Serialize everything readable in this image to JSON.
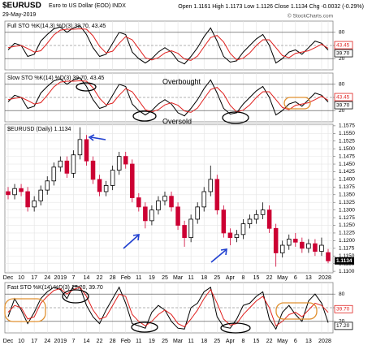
{
  "header": {
    "symbol": "$EURUSD",
    "name": "Euro to US Dollar (EOD) INDX",
    "date": "29-May-2019",
    "quote": "Open 1.1161 High 1.1173 Low 1.1126 Close 1.1134 Chg -0.0032 (-0.29%)",
    "source": "© StockCharts.com"
  },
  "chart_data": [
    {
      "type": "line",
      "title": "Full STO %K(14,3) %D(3) 39.70, 43.45",
      "xlim": [
        0,
        49
      ],
      "ylim": [
        0,
        100
      ],
      "yticks": [
        20,
        50,
        80
      ],
      "series": [
        {
          "color": "#000000",
          "last_label": "39.70",
          "values": [
            40,
            55,
            50,
            25,
            30,
            60,
            75,
            88,
            92,
            80,
            90,
            95,
            75,
            45,
            25,
            30,
            55,
            80,
            75,
            35,
            20,
            10,
            20,
            35,
            45,
            35,
            15,
            8,
            25,
            45,
            70,
            90,
            60,
            25,
            12,
            15,
            35,
            50,
            65,
            75,
            50,
            10,
            20,
            35,
            40,
            30,
            45,
            60,
            55,
            39.7
          ]
        },
        {
          "color": "#e0201e",
          "last_label": "43.45",
          "values": [
            45,
            48,
            50,
            43,
            35,
            38,
            55,
            74,
            85,
            87,
            87,
            88,
            87,
            72,
            48,
            33,
            37,
            55,
            70,
            63,
            43,
            22,
            17,
            22,
            33,
            38,
            32,
            19,
            16,
            26,
            47,
            68,
            73,
            58,
            32,
            17,
            21,
            33,
            50,
            63,
            63,
            45,
            27,
            22,
            32,
            35,
            38,
            45,
            53,
            43.45
          ]
        }
      ]
    },
    {
      "type": "line",
      "title": "Slow STO %K(14) %D(3) 39.70, 43.45",
      "xlim": [
        0,
        49
      ],
      "ylim": [
        0,
        100
      ],
      "yticks": [
        20,
        50,
        80
      ],
      "annotations": [
        "Overbought",
        "Oversold"
      ],
      "series": [
        {
          "color": "#000000",
          "last_label": "39.70",
          "values": [
            40,
            55,
            50,
            25,
            30,
            60,
            75,
            88,
            92,
            80,
            90,
            95,
            75,
            45,
            25,
            30,
            55,
            80,
            75,
            35,
            20,
            10,
            20,
            35,
            45,
            35,
            15,
            8,
            25,
            45,
            70,
            90,
            60,
            25,
            12,
            15,
            35,
            50,
            65,
            75,
            50,
            10,
            20,
            35,
            40,
            30,
            45,
            60,
            55,
            39.7
          ]
        },
        {
          "color": "#e0201e",
          "last_label": "43.45",
          "values": [
            45,
            48,
            50,
            43,
            35,
            38,
            55,
            74,
            85,
            87,
            87,
            88,
            87,
            72,
            48,
            33,
            37,
            55,
            70,
            63,
            43,
            22,
            17,
            22,
            33,
            38,
            32,
            19,
            16,
            26,
            47,
            68,
            73,
            58,
            32,
            17,
            21,
            33,
            50,
            63,
            63,
            45,
            27,
            22,
            32,
            35,
            38,
            45,
            53,
            43.45
          ]
        }
      ]
    },
    {
      "type": "candlestick",
      "title": "$EURUSD (Daily) 1.1134",
      "last_label": "1.1134",
      "up_color": "#000000",
      "down_color": "#cc0033",
      "xlim": [
        0,
        49
      ],
      "ylim": [
        1.1095,
        1.158
      ],
      "yticks": [
        {
          "value": 1.11,
          "label": "1.1100"
        },
        1.1125,
        {
          "value": 1.115,
          "label": "1.1150"
        },
        1.1175,
        {
          "value": 1.12,
          "label": "1.1200"
        },
        1.1225,
        {
          "value": 1.125,
          "label": "1.1250"
        },
        1.1275,
        {
          "value": 1.13,
          "label": "1.1300"
        },
        1.1325,
        {
          "value": 1.135,
          "label": "1.1350"
        },
        1.1375,
        {
          "value": 1.14,
          "label": "1.1400"
        },
        1.1425,
        {
          "value": 1.145,
          "label": "1.1450"
        },
        1.1475,
        {
          "value": 1.15,
          "label": "1.1500"
        },
        1.1525,
        {
          "value": 1.155,
          "label": "1.1550"
        },
        1.1575
      ],
      "xticks": [
        {
          "value": 0,
          "label": "Dec"
        },
        {
          "value": 2,
          "label": "10"
        },
        {
          "value": 4,
          "label": "17"
        },
        {
          "value": 6,
          "label": "24"
        },
        {
          "value": 8,
          "label": "2019"
        },
        {
          "value": 10,
          "label": "7"
        },
        {
          "value": 12,
          "label": "14"
        },
        {
          "value": 14,
          "label": "22"
        },
        {
          "value": 16,
          "label": "28"
        },
        {
          "value": 18,
          "label": "Feb"
        },
        {
          "value": 20,
          "label": "11"
        },
        {
          "value": 22,
          "label": "19"
        },
        {
          "value": 24,
          "label": "25"
        },
        {
          "value": 26,
          "label": "Mar"
        },
        {
          "value": 28,
          "label": "11"
        },
        {
          "value": 30,
          "label": "18"
        },
        {
          "value": 32,
          "label": "25"
        },
        {
          "value": 34,
          "label": "Apr"
        },
        {
          "value": 36,
          "label": "8"
        },
        {
          "value": 38,
          "label": "15"
        },
        {
          "value": 40,
          "label": "22"
        },
        {
          "value": 42,
          "label": "May"
        },
        {
          "value": 44,
          "label": "6"
        },
        {
          "value": 46,
          "label": "13"
        },
        {
          "value": 48,
          "label": "20"
        },
        {
          "value": 49,
          "label": "28"
        }
      ],
      "open": [
        1.136,
        1.135,
        1.137,
        1.136,
        1.131,
        1.133,
        1.1365,
        1.1395,
        1.144,
        1.146,
        1.142,
        1.148,
        1.153,
        1.146,
        1.14,
        1.136,
        1.138,
        1.143,
        1.1475,
        1.145,
        1.134,
        1.131,
        1.1265,
        1.13,
        1.133,
        1.1345,
        1.131,
        1.125,
        1.121,
        1.127,
        1.131,
        1.136,
        1.14,
        1.13,
        1.1225,
        1.121,
        1.122,
        1.1255,
        1.127,
        1.1285,
        1.13,
        1.124,
        1.116,
        1.1185,
        1.1205,
        1.1195,
        1.1175,
        1.119,
        1.1165,
        1.1161
      ],
      "high": [
        1.1375,
        1.1385,
        1.1385,
        1.1375,
        1.1345,
        1.138,
        1.141,
        1.1455,
        1.1475,
        1.1475,
        1.1495,
        1.157,
        1.1545,
        1.1475,
        1.1415,
        1.1395,
        1.1445,
        1.149,
        1.149,
        1.1465,
        1.1355,
        1.1325,
        1.1315,
        1.1345,
        1.136,
        1.136,
        1.1325,
        1.1265,
        1.1285,
        1.1325,
        1.1375,
        1.1445,
        1.1415,
        1.1315,
        1.124,
        1.1235,
        1.127,
        1.1285,
        1.13,
        1.1325,
        1.1315,
        1.1255,
        1.12,
        1.122,
        1.1225,
        1.121,
        1.1205,
        1.1205,
        1.121,
        1.1173
      ],
      "low": [
        1.1335,
        1.1335,
        1.1345,
        1.1295,
        1.1295,
        1.1315,
        1.135,
        1.138,
        1.1425,
        1.1405,
        1.1405,
        1.1465,
        1.1445,
        1.1385,
        1.1345,
        1.1345,
        1.1365,
        1.1415,
        1.1435,
        1.1325,
        1.1295,
        1.124,
        1.125,
        1.1285,
        1.1315,
        1.1295,
        1.1235,
        1.118,
        1.1195,
        1.1255,
        1.1295,
        1.1345,
        1.1285,
        1.121,
        1.1185,
        1.1195,
        1.1205,
        1.124,
        1.1255,
        1.127,
        1.1225,
        1.1115,
        1.1145,
        1.117,
        1.118,
        1.116,
        1.116,
        1.115,
        1.115,
        1.1126
      ],
      "close": [
        1.135,
        1.137,
        1.136,
        1.131,
        1.133,
        1.1365,
        1.1395,
        1.144,
        1.146,
        1.142,
        1.148,
        1.153,
        1.146,
        1.14,
        1.136,
        1.138,
        1.143,
        1.1475,
        1.145,
        1.134,
        1.131,
        1.1265,
        1.13,
        1.133,
        1.1345,
        1.131,
        1.125,
        1.121,
        1.127,
        1.131,
        1.136,
        1.14,
        1.13,
        1.1225,
        1.121,
        1.122,
        1.1255,
        1.127,
        1.1285,
        1.13,
        1.124,
        1.116,
        1.1185,
        1.1205,
        1.1195,
        1.1175,
        1.119,
        1.1165,
        1.1185,
        1.1134
      ]
    },
    {
      "type": "line",
      "title": "Fast STO %K(14) %D(3) 17.20, 39.70",
      "xlim": [
        0,
        49
      ],
      "ylim": [
        0,
        100
      ],
      "yticks": [
        20,
        50,
        80
      ],
      "xticks": [
        {
          "value": 0,
          "label": "Dec"
        },
        {
          "value": 2,
          "label": "10"
        },
        {
          "value": 4,
          "label": "17"
        },
        {
          "value": 6,
          "label": "24"
        },
        {
          "value": 8,
          "label": "2019"
        },
        {
          "value": 10,
          "label": "7"
        },
        {
          "value": 12,
          "label": "14"
        },
        {
          "value": 14,
          "label": "22"
        },
        {
          "value": 16,
          "label": "28"
        },
        {
          "value": 18,
          "label": "Feb"
        },
        {
          "value": 20,
          "label": "11"
        },
        {
          "value": 22,
          "label": "19"
        },
        {
          "value": 24,
          "label": "25"
        },
        {
          "value": 26,
          "label": "Mar"
        },
        {
          "value": 28,
          "label": "11"
        },
        {
          "value": 30,
          "label": "18"
        },
        {
          "value": 32,
          "label": "25"
        },
        {
          "value": 34,
          "label": "Apr"
        },
        {
          "value": 36,
          "label": "8"
        },
        {
          "value": 38,
          "label": "15"
        },
        {
          "value": 40,
          "label": "22"
        },
        {
          "value": 42,
          "label": "May"
        },
        {
          "value": 44,
          "label": "6"
        },
        {
          "value": 46,
          "label": "13"
        },
        {
          "value": 48,
          "label": "20"
        },
        {
          "value": 49,
          "label": "28"
        }
      ],
      "series": [
        {
          "color": "#000000",
          "last_label": "17.20",
          "values": [
            30,
            70,
            45,
            15,
            40,
            70,
            85,
            95,
            90,
            70,
            98,
            96,
            55,
            30,
            15,
            45,
            70,
            95,
            60,
            15,
            10,
            5,
            40,
            55,
            45,
            20,
            5,
            3,
            50,
            60,
            85,
            95,
            30,
            8,
            5,
            25,
            55,
            60,
            75,
            85,
            25,
            3,
            40,
            55,
            35,
            20,
            65,
            80,
            60,
            17.2
          ]
        },
        {
          "color": "#e0201e",
          "last_label": "39.70",
          "values": [
            40,
            55,
            50,
            25,
            30,
            60,
            75,
            88,
            92,
            80,
            90,
            95,
            75,
            45,
            25,
            30,
            55,
            80,
            75,
            35,
            20,
            10,
            20,
            35,
            45,
            35,
            15,
            8,
            25,
            45,
            70,
            90,
            60,
            25,
            12,
            15,
            35,
            50,
            65,
            75,
            50,
            10,
            20,
            35,
            40,
            30,
            45,
            60,
            55,
            39.7
          ]
        }
      ]
    }
  ]
}
